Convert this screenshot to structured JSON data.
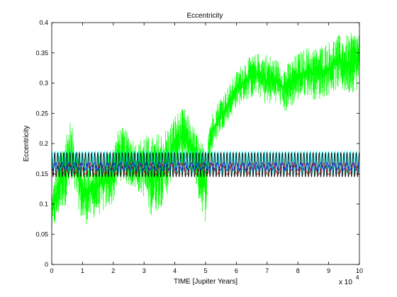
{
  "chart_data": {
    "type": "line",
    "title": "Eccentricity",
    "xlabel": "TIME [Jupiter Years]",
    "ylabel": "Eccentricity",
    "x_multiplier": "x 10",
    "x_multiplier_exponent": "4",
    "xlim": [
      0,
      10
    ],
    "ylim": [
      0,
      0.4
    ],
    "xticks": [
      "0",
      "1",
      "2",
      "3",
      "4",
      "5",
      "6",
      "7",
      "8",
      "9",
      "10"
    ],
    "yticks": [
      "0",
      "0.05",
      "0.1",
      "0.15",
      "0.2",
      "0.25",
      "0.3",
      "0.35",
      "0.4"
    ],
    "grid": false,
    "series": [
      {
        "color": "#00ff00",
        "style": "noisy-envelope",
        "x": [
          0,
          0.1,
          0.3,
          0.5,
          0.6,
          0.8,
          1.0,
          1.2,
          1.5,
          1.8,
          2.0,
          2.2,
          2.5,
          2.8,
          3.0,
          3.2,
          3.5,
          3.8,
          4.0,
          4.3,
          4.6,
          4.8,
          5.0,
          5.1,
          5.3,
          5.5,
          5.8,
          6.0,
          6.3,
          6.7,
          7.0,
          7.3,
          7.6,
          8.0,
          8.3,
          8.6,
          9.0,
          9.3,
          9.6,
          10.0
        ],
        "low": [
          0.05,
          0.06,
          0.09,
          0.1,
          0.12,
          0.11,
          0.06,
          0.07,
          0.08,
          0.09,
          0.1,
          0.14,
          0.13,
          0.12,
          0.11,
          0.08,
          0.09,
          0.12,
          0.15,
          0.16,
          0.15,
          0.1,
          0.07,
          0.16,
          0.2,
          0.22,
          0.24,
          0.26,
          0.27,
          0.28,
          0.26,
          0.27,
          0.25,
          0.27,
          0.28,
          0.27,
          0.28,
          0.29,
          0.28,
          0.29
        ],
        "high": [
          0.12,
          0.15,
          0.19,
          0.23,
          0.24,
          0.2,
          0.18,
          0.17,
          0.18,
          0.19,
          0.2,
          0.23,
          0.22,
          0.2,
          0.22,
          0.21,
          0.22,
          0.23,
          0.25,
          0.26,
          0.23,
          0.21,
          0.19,
          0.24,
          0.26,
          0.28,
          0.3,
          0.32,
          0.34,
          0.35,
          0.35,
          0.34,
          0.33,
          0.35,
          0.36,
          0.36,
          0.37,
          0.38,
          0.38,
          0.39
        ]
      },
      {
        "color": "#00ffff",
        "style": "oscillation",
        "center": 0.168,
        "amplitude": 0.019,
        "period": 0.1
      },
      {
        "color": "#000000",
        "style": "oscillation",
        "center": 0.165,
        "amplitude": 0.02,
        "period": 0.1
      },
      {
        "color": "#ff0000",
        "style": "oscillation",
        "center": 0.158,
        "amplitude": 0.009,
        "period": 0.33
      },
      {
        "color": "#0000ff",
        "style": "oscillation",
        "center": 0.162,
        "amplitude": 0.006,
        "period": 0.21
      }
    ]
  }
}
